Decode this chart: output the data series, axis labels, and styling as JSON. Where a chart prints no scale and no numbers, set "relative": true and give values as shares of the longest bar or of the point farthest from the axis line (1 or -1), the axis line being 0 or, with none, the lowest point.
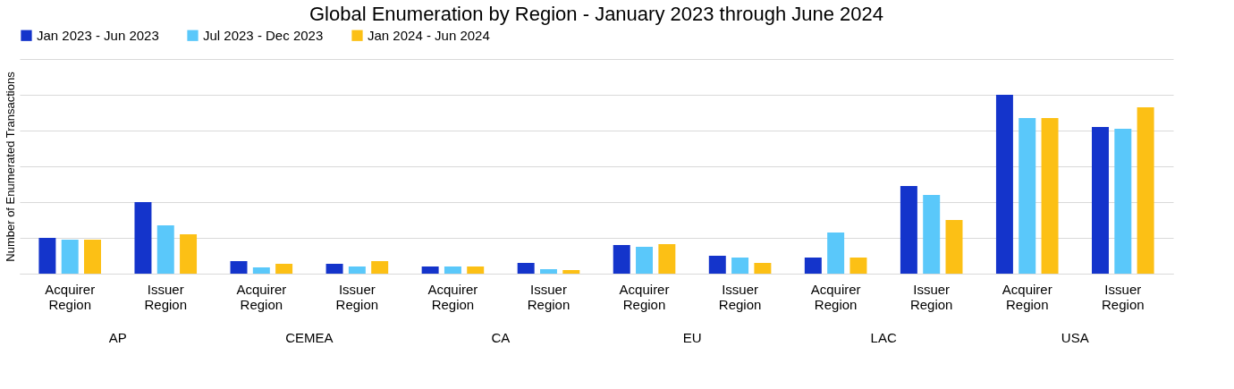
{
  "chart_data": {
    "type": "bar",
    "relative": true,
    "title": "Global Enumeration by Region - January 2023 through June 2024",
    "ylabel": "Number of Enumerated Transactions",
    "legend": "top",
    "grid": "y",
    "categories": [
      "Acquirer Region",
      "Issuer Region",
      "Acquirer Region",
      "Issuer Region",
      "Acquirer Region",
      "Issuer Region",
      "Acquirer Region",
      "Issuer Region",
      "Acquirer Region",
      "Issuer Region",
      "Acquirer Region",
      "Issuer Region"
    ],
    "annotations": [
      "AP",
      "CEMEA",
      "CA",
      "EU",
      "LAC",
      "USA"
    ],
    "series": [
      {
        "name": "Jan 2023 - Jun 2023",
        "color": "#1434cb",
        "values": [
          0.2,
          0.4,
          0.07,
          0.055,
          0.04,
          0.06,
          0.16,
          0.1,
          0.09,
          0.49,
          1.0,
          0.82
        ]
      },
      {
        "name": "Jul 2023 - Dec 2023",
        "color": "#5ac8fa",
        "values": [
          0.19,
          0.27,
          0.035,
          0.04,
          0.04,
          0.025,
          0.15,
          0.09,
          0.23,
          0.44,
          0.87,
          0.81
        ]
      },
      {
        "name": "Jan 2024 - Jun 2024",
        "color": "#fcc015",
        "values": [
          0.19,
          0.22,
          0.055,
          0.07,
          0.04,
          0.02,
          0.165,
          0.06,
          0.09,
          0.3,
          0.87,
          0.93
        ]
      }
    ]
  }
}
